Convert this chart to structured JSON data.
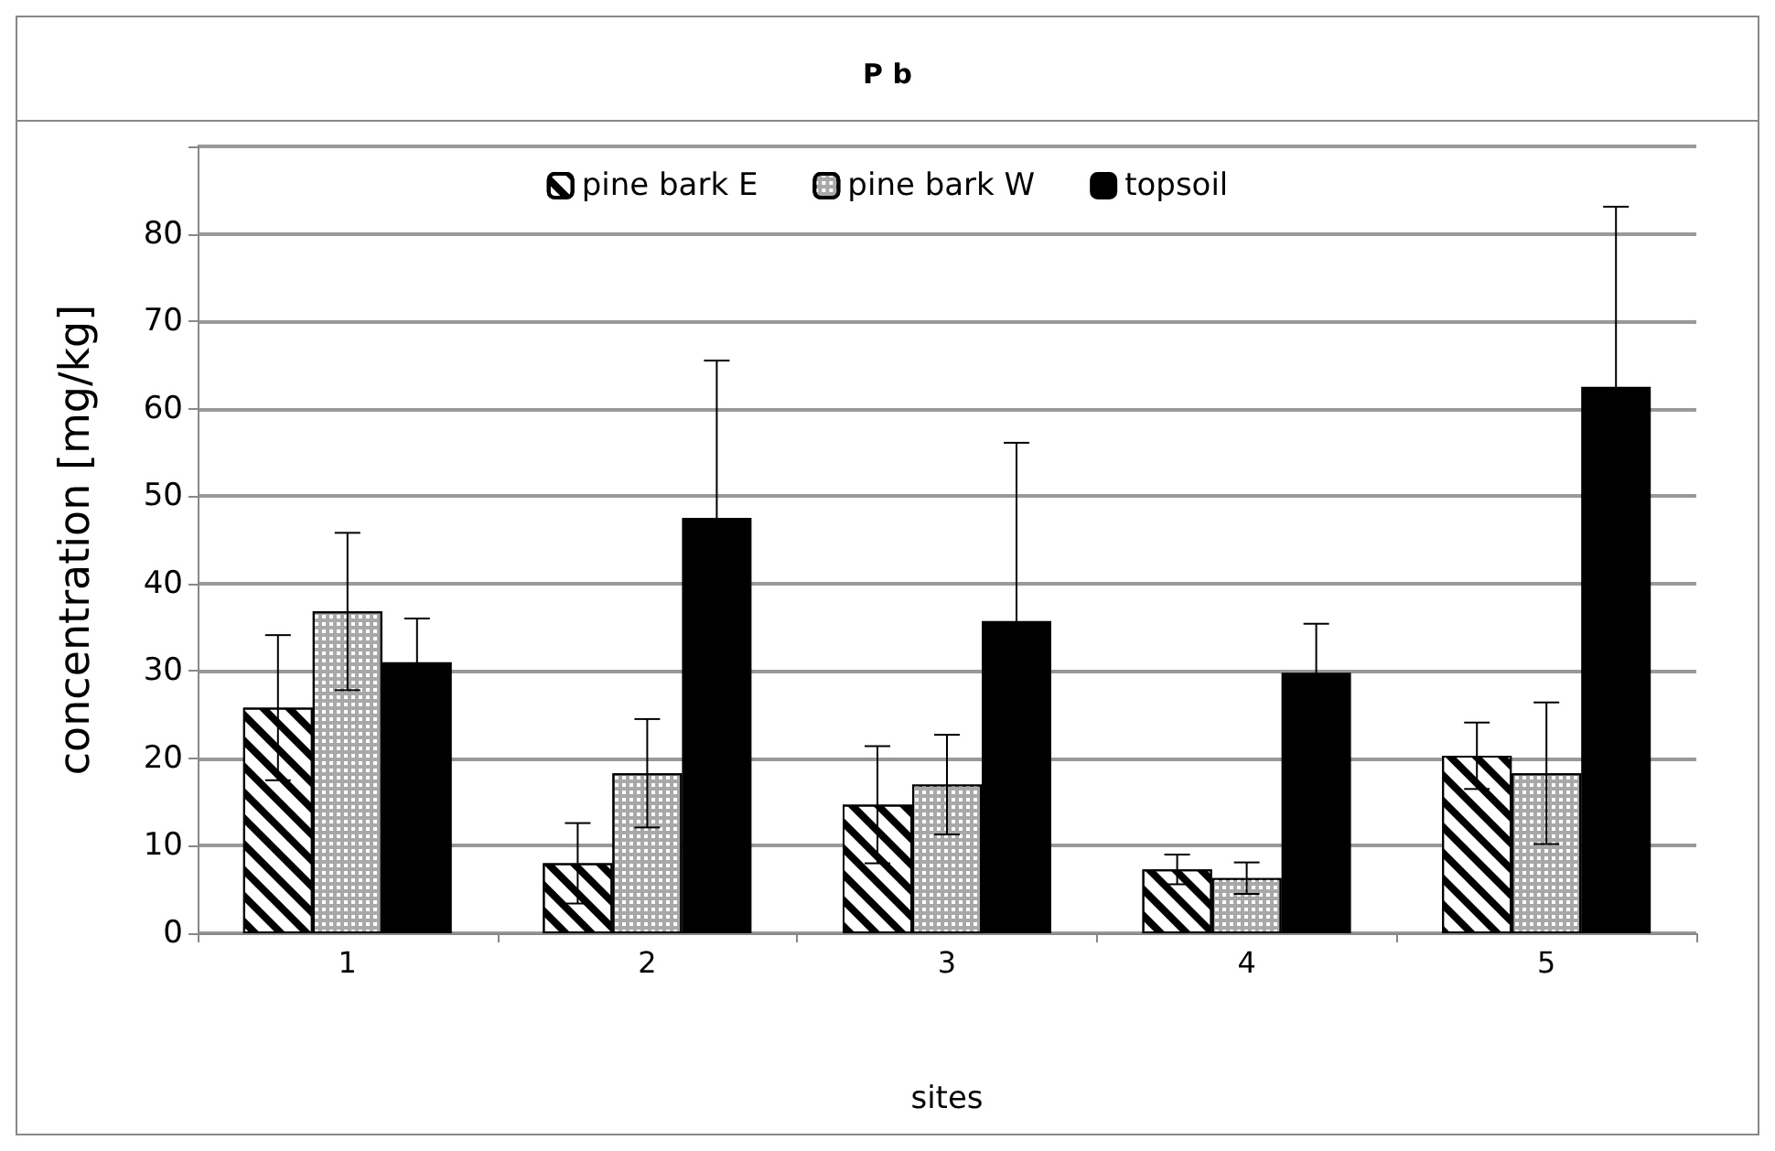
{
  "chart_data": {
    "type": "bar",
    "title": "P b",
    "xlabel": "sites",
    "ylabel": "concentration [mg/kg]",
    "categories": [
      "1",
      "2",
      "3",
      "4",
      "5"
    ],
    "series": [
      {
        "name": "pine bark E",
        "color": "#ffffff",
        "values": [
          25.8,
          8.0,
          14.7,
          7.3,
          20.3
        ],
        "errors": [
          8.3,
          4.6,
          6.7,
          1.7,
          3.8
        ]
      },
      {
        "name": "pine bark W",
        "color": "#a8a8a8",
        "values": [
          36.8,
          18.3,
          17.0,
          6.3,
          18.3
        ],
        "errors": [
          9.0,
          6.2,
          5.7,
          1.8,
          8.1
        ]
      },
      {
        "name": "topsoil",
        "color": "#000000",
        "values": [
          31.0,
          47.5,
          35.7,
          29.8,
          62.5
        ],
        "errors": [
          5.0,
          18.0,
          20.4,
          5.6,
          20.6
        ]
      }
    ],
    "ylim": [
      0,
      90
    ],
    "yticks": [
      0,
      10,
      20,
      30,
      40,
      50,
      60,
      70,
      80,
      {
        "value": 90,
        "label": null
      }
    ],
    "grid": "y",
    "legend": "top"
  }
}
